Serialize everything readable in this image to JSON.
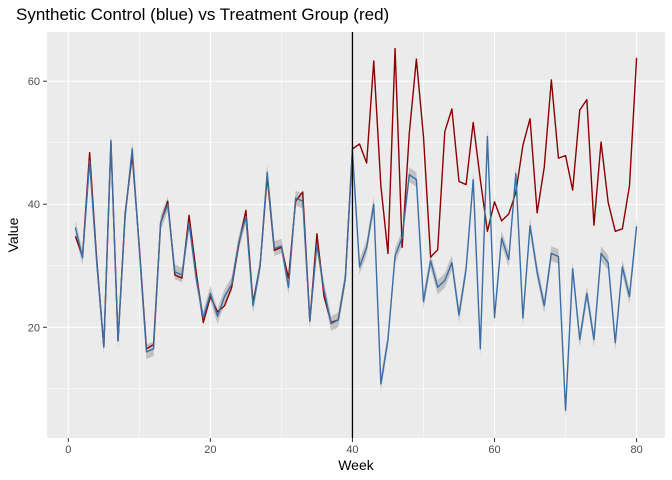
{
  "chart_data": {
    "type": "line",
    "title": "Synthetic Control (blue) vs Treatment Group (red)",
    "xlabel": "Week",
    "ylabel": "Value",
    "xlim": [
      -3,
      84
    ],
    "ylim": [
      2,
      68
    ],
    "x_ticks": [
      0,
      20,
      40,
      60,
      80
    ],
    "y_ticks": [
      20,
      40,
      60
    ],
    "grid": true,
    "vline": 40,
    "x": [
      1,
      2,
      3,
      4,
      5,
      6,
      7,
      8,
      9,
      10,
      11,
      12,
      13,
      14,
      15,
      16,
      17,
      18,
      19,
      20,
      21,
      22,
      23,
      24,
      25,
      26,
      27,
      28,
      29,
      30,
      31,
      32,
      33,
      34,
      35,
      36,
      37,
      38,
      39,
      40,
      41,
      42,
      43,
      44,
      45,
      46,
      47,
      48,
      49,
      50,
      51,
      52,
      53,
      54,
      55,
      56,
      57,
      58,
      59,
      60,
      61,
      62,
      63,
      64,
      65,
      66,
      67,
      68,
      69,
      70,
      71,
      72,
      73,
      74,
      75,
      76,
      77,
      78,
      79,
      80
    ],
    "series": [
      {
        "color": "#8b0000",
        "values": [
          34.8,
          31.5,
          48.4,
          31.0,
          16.8,
          50.0,
          17.8,
          38.5,
          48.0,
          33.0,
          16.5,
          17.2,
          37.0,
          40.5,
          28.5,
          28.0,
          38.2,
          29.0,
          20.8,
          25.0,
          22.5,
          23.5,
          26.5,
          33.5,
          39.0,
          24.0,
          30.0,
          44.5,
          32.5,
          33.0,
          28.0,
          40.5,
          42.0,
          21.0,
          35.2,
          25.0,
          20.8,
          21.2,
          28.0,
          49.0,
          49.8,
          46.7,
          63.3,
          43.0,
          32.0,
          65.3,
          33.0,
          51.5,
          63.6,
          51.0,
          31.4,
          32.6,
          51.8,
          55.5,
          43.7,
          43.2,
          53.3,
          44.0,
          35.6,
          40.4,
          37.3,
          38.4,
          41.9,
          49.6,
          53.9,
          38.6,
          46.0,
          60.2,
          47.5,
          47.9,
          42.3,
          55.3,
          57.0,
          36.6,
          50.1,
          40.3,
          35.6,
          36.0,
          43.0,
          63.8
        ]
      },
      {
        "color": "#3a6ea5",
        "band_color": "#b3b3b3",
        "band_half_width": 1.2,
        "values": [
          36.2,
          31.3,
          47.0,
          30.5,
          16.8,
          50.4,
          17.8,
          38.0,
          49.0,
          32.5,
          16.0,
          16.5,
          37.0,
          40.0,
          29.0,
          28.5,
          37.0,
          28.0,
          21.5,
          25.5,
          21.8,
          25.0,
          27.0,
          33.8,
          38.0,
          23.5,
          30.0,
          45.2,
          32.8,
          33.2,
          26.5,
          41.0,
          40.5,
          21.0,
          33.5,
          26.0,
          20.6,
          21.2,
          28.0,
          48.6,
          29.8,
          33.0,
          40.0,
          10.8,
          18.0,
          31.6,
          34.6,
          44.8,
          44.0,
          24.2,
          30.8,
          26.5,
          27.6,
          30.5,
          22.0,
          29.5,
          44.0,
          16.5,
          51.0,
          21.6,
          34.5,
          31.0,
          45.0,
          21.5,
          36.5,
          29.0,
          23.5,
          32.0,
          31.5,
          6.5,
          29.5,
          18.0,
          25.5,
          18.0,
          32.0,
          30.5,
          17.5,
          29.8,
          25.0,
          36.4
        ]
      }
    ]
  }
}
